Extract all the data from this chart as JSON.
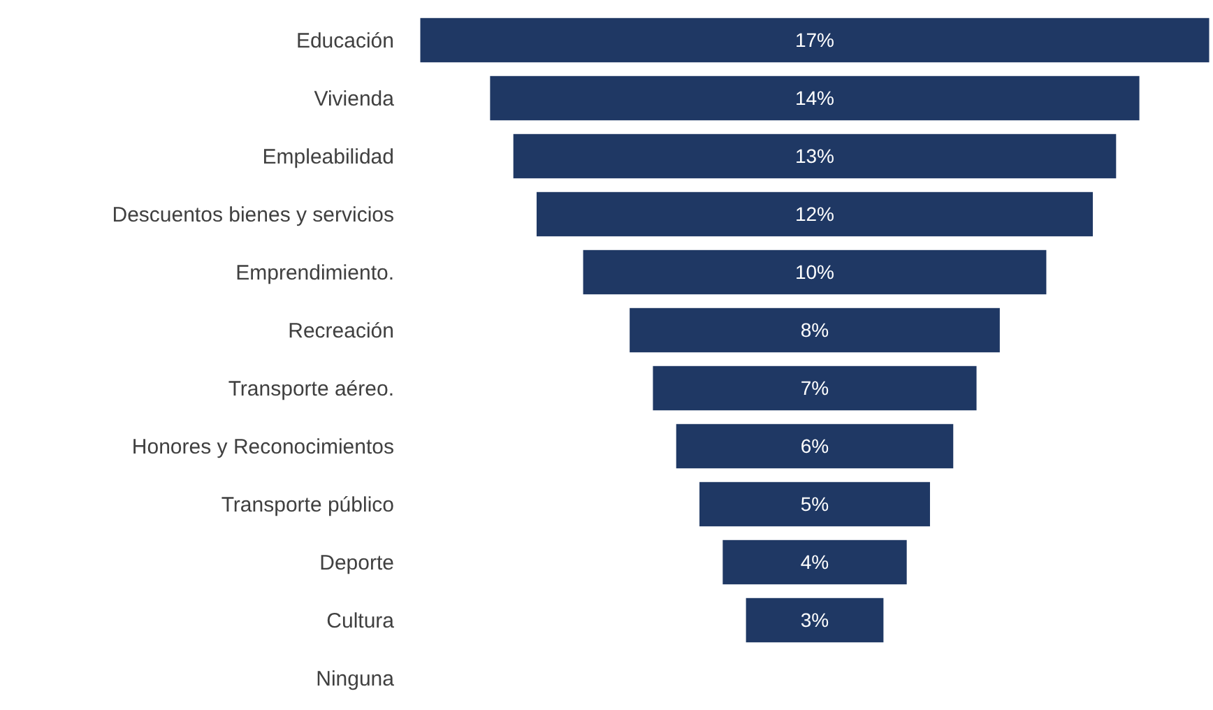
{
  "chart_data": {
    "type": "other",
    "color": "#1f3864",
    "categories": [
      "Educación",
      "Vivienda",
      "Empleabilidad",
      "Descuentos bienes y servicios",
      "Emprendimiento.",
      "Recreación",
      "Transporte aéreo.",
      "Honores y Reconocimientos",
      "Transporte público",
      "Deporte",
      "Cultura",
      "Ninguna"
    ],
    "values": [
      17,
      14,
      13,
      12,
      10,
      8,
      7,
      6,
      5,
      4,
      3,
      null
    ],
    "value_labels": [
      "17%",
      "14%",
      "13%",
      "12%",
      "10%",
      "8%",
      "7%",
      "6%",
      "5%",
      "4%",
      "3%",
      null
    ]
  }
}
